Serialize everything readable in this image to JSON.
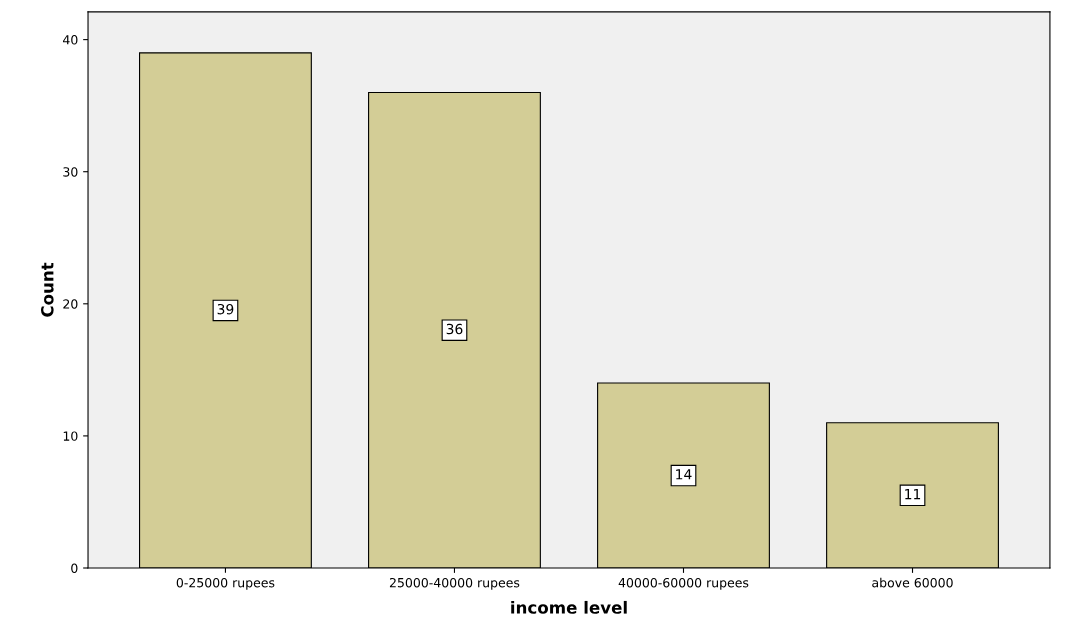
{
  "chart_data": {
    "type": "bar",
    "xlabel": "income level",
    "ylabel": "Count",
    "categories": [
      "0-25000 rupees",
      "25000-40000 rupees",
      "40000-60000 rupees",
      "above 60000"
    ],
    "values": [
      39,
      36,
      14,
      11
    ],
    "color": "#d3cd96",
    "ylim": [
      0,
      42.1
    ],
    "yticks": [
      0,
      10,
      20,
      30,
      40
    ],
    "grid": false,
    "data_labels": true,
    "legend": false
  }
}
